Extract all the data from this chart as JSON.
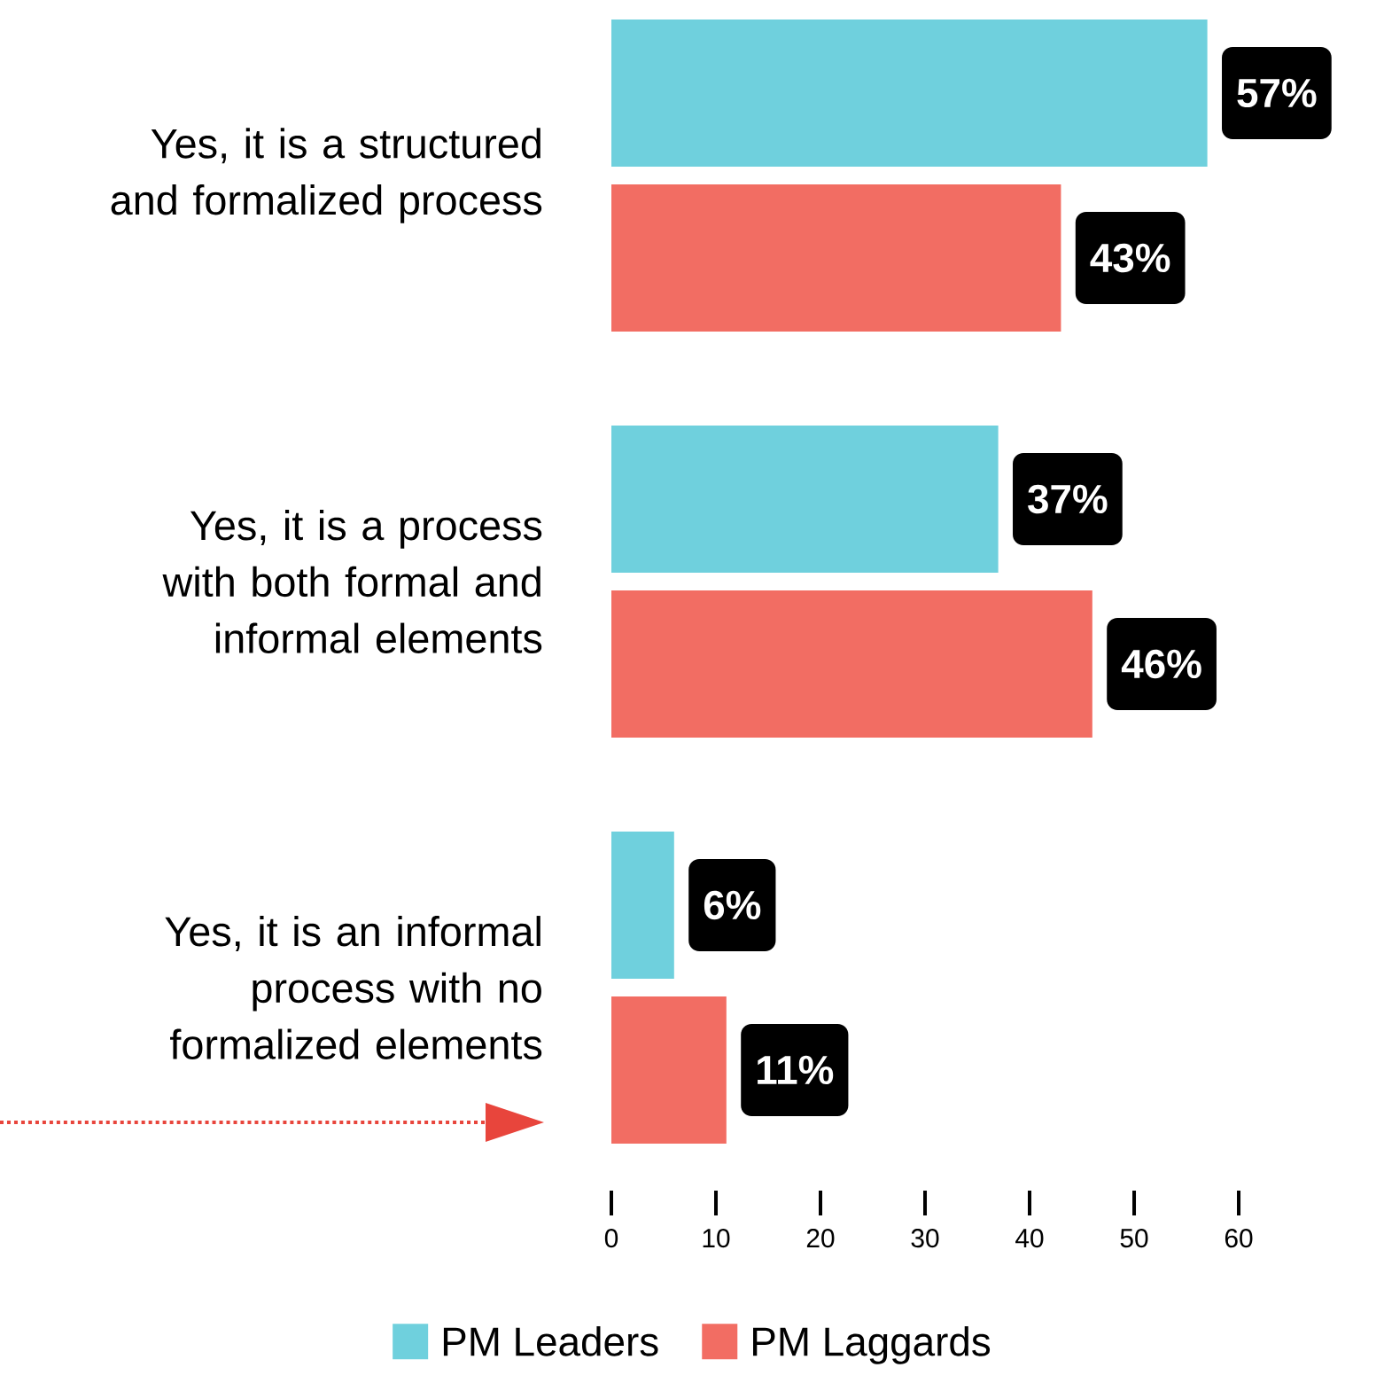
{
  "chart_data": {
    "type": "bar",
    "orientation": "horizontal",
    "categories": [
      "Yes, it is a structured and formalized process",
      "Yes, it is a process with both formal and informal elements",
      "Yes, it is an informal process with no formalized elements"
    ],
    "series": [
      {
        "name": "PM Leaders",
        "color": "#6fd0dd",
        "values": [
          57,
          37,
          6
        ],
        "value_labels": [
          "57%",
          "37%",
          "6%"
        ]
      },
      {
        "name": "PM Laggards",
        "color": "#f26d63",
        "values": [
          43,
          46,
          11
        ],
        "value_labels": [
          "43%",
          "46%",
          "11%"
        ]
      }
    ],
    "xlim": [
      0,
      60
    ],
    "xticks": [
      0,
      10,
      20,
      30,
      40,
      50,
      60
    ],
    "legend": "bottom"
  }
}
